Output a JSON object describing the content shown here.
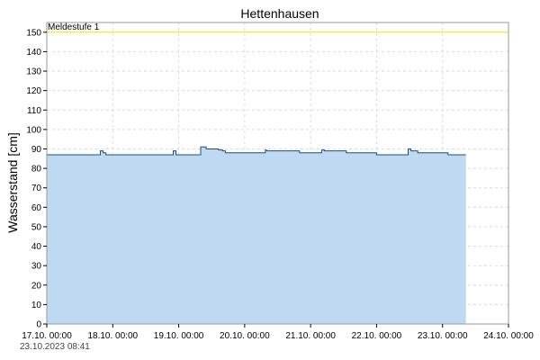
{
  "chart_data": {
    "type": "area",
    "title": "Hettenhausen",
    "xlabel": "",
    "ylabel": "Wasserstand [cm]",
    "ylim": [
      0,
      155
    ],
    "yticks": [
      0,
      10,
      20,
      30,
      40,
      50,
      60,
      70,
      80,
      90,
      100,
      110,
      120,
      130,
      140,
      150
    ],
    "xlim": [
      "2023-10-17T00:00",
      "2023-10-24T00:00"
    ],
    "xtick_labels": [
      "17.10. 00:00",
      "18.10. 00:00",
      "19.10. 00:00",
      "20.10. 00:00",
      "21.10. 00:00",
      "22.10. 00:00",
      "23.10. 00:00",
      "24.10. 00:00"
    ],
    "grid": true,
    "threshold": {
      "label": "Meldestufe 1",
      "value": 150,
      "color": "#f0f000"
    },
    "timestamp": "23.10.2023  08:41",
    "fill_color": "#bfd9f2",
    "line_color": "#1f4e79",
    "series": [
      {
        "x": [
          "2023-10-17T00:00",
          "2023-10-17T19:00",
          "2023-10-17T19:30",
          "2023-10-17T20:30",
          "2023-10-17T21:30",
          "2023-10-18T21:30",
          "2023-10-18T22:00",
          "2023-10-18T23:00",
          "2023-10-19T05:00",
          "2023-10-19T07:30",
          "2023-10-19T08:00",
          "2023-10-19T08:30",
          "2023-10-19T10:00",
          "2023-10-19T14:00",
          "2023-10-19T14:30",
          "2023-10-19T16:00",
          "2023-10-19T17:00",
          "2023-10-19T23:00",
          "2023-10-20T00:00",
          "2023-10-20T07:00",
          "2023-10-20T07:30",
          "2023-10-20T08:00",
          "2023-10-20T19:00",
          "2023-10-20T20:00",
          "2023-10-21T03:30",
          "2023-10-21T04:00",
          "2023-10-21T05:00",
          "2023-10-21T07:00",
          "2023-10-21T13:00",
          "2023-10-21T14:00",
          "2023-10-21T14:30",
          "2023-10-22T00:00",
          "2023-10-22T01:00",
          "2023-10-22T11:00",
          "2023-10-22T11:30",
          "2023-10-22T12:30",
          "2023-10-22T15:00",
          "2023-10-23T02:00",
          "2023-10-23T08:30"
        ],
        "y": [
          87,
          87,
          89,
          88,
          87,
          87,
          89,
          87,
          87,
          87,
          91,
          91,
          90,
          90,
          89.5,
          89,
          88,
          88,
          88,
          88,
          89.5,
          89,
          89,
          88,
          88,
          89.5,
          89,
          89,
          88,
          88,
          88,
          87,
          87,
          87,
          90,
          89,
          88,
          87,
          87
        ]
      }
    ]
  }
}
